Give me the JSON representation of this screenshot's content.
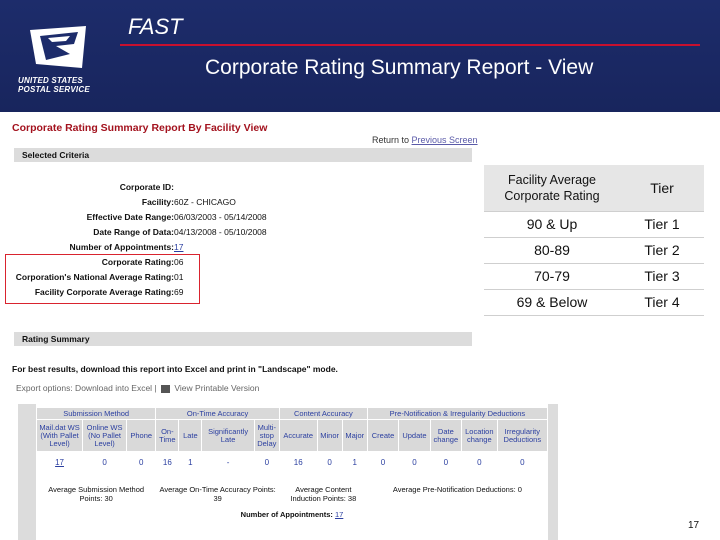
{
  "header": {
    "app_name": "FAST",
    "slide_title": "Corporate Rating Summary Report - View",
    "logo_text": [
      "UNITED STATES",
      "POSTAL SERVICE"
    ]
  },
  "report": {
    "title": "Corporate Rating Summary Report By Facility View",
    "return_prefix": "Return to ",
    "return_link": "Previous Screen",
    "selected_criteria_label": "Selected Criteria",
    "criteria": [
      {
        "label": "Corporate ID:",
        "value": ""
      },
      {
        "label": "Facility:",
        "value": "60Z - CHICAGO"
      },
      {
        "label": "Effective Date Range:",
        "value": "06/03/2003 - 05/14/2008"
      },
      {
        "label": "Date Range of Data:",
        "value": "04/13/2008 - 05/10/2008"
      },
      {
        "label": "Number of Appointments:",
        "value": "17"
      },
      {
        "label": "Corporate Rating:",
        "value": "06"
      },
      {
        "label": "Corporation's National Average Rating:",
        "value": "01"
      },
      {
        "label": "Facility Corporate Average Rating:",
        "value": "69"
      }
    ],
    "rating_summary_label": "Rating Summary",
    "best_results_note": "For best results, download this report into Excel and print in \"Landscape\" mode.",
    "export_prefix": "Export options: Download into Excel |",
    "export_view": "View Printable Version"
  },
  "summary_table": {
    "groups": [
      "Submission Method",
      "On-Time Accuracy",
      "Content Accuracy",
      "Pre-Notification & Irregularity Deductions"
    ],
    "headers": [
      "Mail.dat WS (With Pallet Level)",
      "Online WS (No Pallet Level)",
      "Phone",
      "On-Time",
      "Late",
      "Significantly Late",
      "Multi-stop Delay",
      "Accurate",
      "Minor",
      "Major",
      "Create",
      "Update",
      "Date change",
      "Location change",
      "Irregularity Deductions"
    ],
    "values": [
      "17",
      "0",
      "0",
      "16",
      "1",
      "-",
      "0",
      "16",
      "0",
      "1",
      "0",
      "0",
      "0",
      "0",
      "0"
    ],
    "footers": [
      "Average Submission Method Points: 30",
      "Average On-Time Accuracy Points: 39",
      "Average Content Induction Points: 38",
      "Average Pre-Notification Deductions: 0"
    ],
    "appointments_label": "Number of Appointments:",
    "appointments_value": "17"
  },
  "tier_table": {
    "header_rating": "Facility Average Corporate Rating",
    "header_tier": "Tier",
    "rows": [
      {
        "rating": "90 & Up",
        "tier": "Tier 1"
      },
      {
        "rating": "80-89",
        "tier": "Tier 2"
      },
      {
        "rating": "70-79",
        "tier": "Tier 3"
      },
      {
        "rating": "69 & Below",
        "tier": "Tier 4"
      }
    ]
  },
  "page_number": "17",
  "colors": {
    "banner": "#1d2c6b",
    "accent_red": "#c8102e",
    "link_blue": "#2b3fa0",
    "title_red": "#a3121e"
  }
}
